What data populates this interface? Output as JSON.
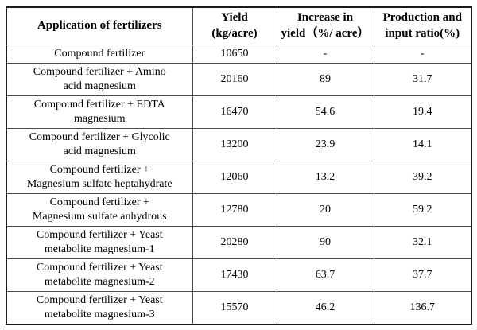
{
  "table": {
    "headers": [
      "Application of fertilizers",
      "Yield\n(kg/acre)",
      "Increase in\nyield（%/ acre）",
      "Production and\ninput ratio(%)"
    ],
    "rows": [
      [
        "Compound fertilizer",
        "10650",
        "-",
        "-"
      ],
      [
        "Compound fertilizer + Amino\nacid magnesium",
        "20160",
        "89",
        "31.7"
      ],
      [
        "Compound fertilizer + EDTA\nmagnesium",
        "16470",
        "54.6",
        "19.4"
      ],
      [
        "Compound fertilizer + Glycolic\nacid magnesium",
        "13200",
        "23.9",
        "14.1"
      ],
      [
        "Compound fertilizer +\nMagnesium sulfate heptahydrate",
        "12060",
        "13.2",
        "39.2"
      ],
      [
        "Compound fertilizer +\nMagnesium sulfate anhydrous",
        "12780",
        "20",
        "59.2"
      ],
      [
        "Compound fertilizer + Yeast\nmetabolite magnesium-1",
        "20280",
        "90",
        "32.1"
      ],
      [
        "Compound fertilizer + Yeast\nmetabolite magnesium-2",
        "17430",
        "63.7",
        "37.7"
      ],
      [
        "Compound fertilizer + Yeast\nmetabolite magnesium-3",
        "15570",
        "46.2",
        "136.7"
      ]
    ]
  },
  "chart_data": {
    "type": "table",
    "title": "",
    "columns": [
      "Application of fertilizers",
      "Yield (kg/acre)",
      "Increase in yield (%/ acre)",
      "Production and input ratio(%)"
    ],
    "rows": [
      {
        "application": "Compound fertilizer",
        "yield_kg_acre": 10650,
        "increase_pct_acre": null,
        "production_input_ratio_pct": null
      },
      {
        "application": "Compound fertilizer + Amino acid magnesium",
        "yield_kg_acre": 20160,
        "increase_pct_acre": 89,
        "production_input_ratio_pct": 31.7
      },
      {
        "application": "Compound fertilizer + EDTA magnesium",
        "yield_kg_acre": 16470,
        "increase_pct_acre": 54.6,
        "production_input_ratio_pct": 19.4
      },
      {
        "application": "Compound fertilizer + Glycolic acid magnesium",
        "yield_kg_acre": 13200,
        "increase_pct_acre": 23.9,
        "production_input_ratio_pct": 14.1
      },
      {
        "application": "Compound fertilizer + Magnesium sulfate heptahydrate",
        "yield_kg_acre": 12060,
        "increase_pct_acre": 13.2,
        "production_input_ratio_pct": 39.2
      },
      {
        "application": "Compound fertilizer + Magnesium sulfate anhydrous",
        "yield_kg_acre": 12780,
        "increase_pct_acre": 20,
        "production_input_ratio_pct": 59.2
      },
      {
        "application": "Compound fertilizer + Yeast metabolite magnesium-1",
        "yield_kg_acre": 20280,
        "increase_pct_acre": 90,
        "production_input_ratio_pct": 32.1
      },
      {
        "application": "Compound fertilizer + Yeast metabolite magnesium-2",
        "yield_kg_acre": 17430,
        "increase_pct_acre": 63.7,
        "production_input_ratio_pct": 37.7
      },
      {
        "application": "Compound fertilizer + Yeast metabolite magnesium-3",
        "yield_kg_acre": 15570,
        "increase_pct_acre": 46.2,
        "production_input_ratio_pct": 136.7
      }
    ]
  }
}
